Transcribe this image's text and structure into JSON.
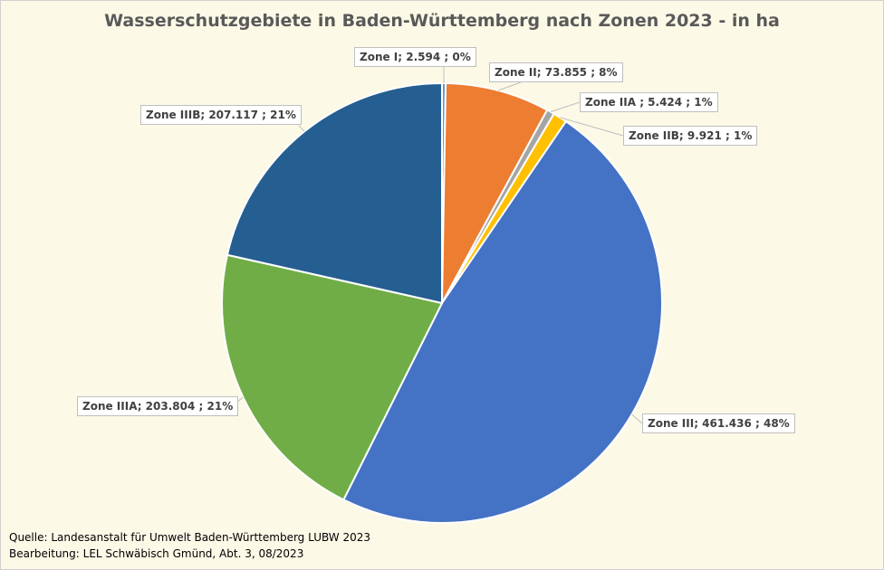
{
  "chart_data": {
    "type": "pie",
    "title": "Wasserschutzgebiete in Baden-Württemberg nach Zonen 2023 - in ha",
    "slices": [
      {
        "name": "Zone I",
        "value": 2594,
        "label": "Zone I;  2.594 ; 0%",
        "color": "#5b9bd5"
      },
      {
        "name": "Zone II",
        "value": 73855,
        "label": "Zone II;  73.855 ; 8%",
        "color": "#ed7d31"
      },
      {
        "name": "Zone IIA",
        "value": 5424,
        "label": "Zone IIA ;  5.424 ; 1%",
        "color": "#a5a5a5"
      },
      {
        "name": "Zone IIB",
        "value": 9921,
        "label": "Zone IIB;  9.921 ; 1%",
        "color": "#ffc000"
      },
      {
        "name": "Zone III",
        "value": 461436,
        "label": "Zone III;  461.436 ; 48%",
        "color": "#4472c4"
      },
      {
        "name": "Zone IIIA",
        "value": 203804,
        "label": "Zone IIIA;  203.804 ; 21%",
        "color": "#70ad47"
      },
      {
        "name": "Zone IIIB",
        "value": 207117,
        "label": "Zone IIIB;  207.117 ; 21%",
        "color": "#255e91"
      }
    ]
  },
  "source": {
    "line1": "Quelle: Landesanstalt für Umwelt Baden-Württemberg LUBW 2023",
    "line2": "Bearbeitung: LEL Schwäbisch Gmünd, Abt. 3, 08/2023"
  }
}
